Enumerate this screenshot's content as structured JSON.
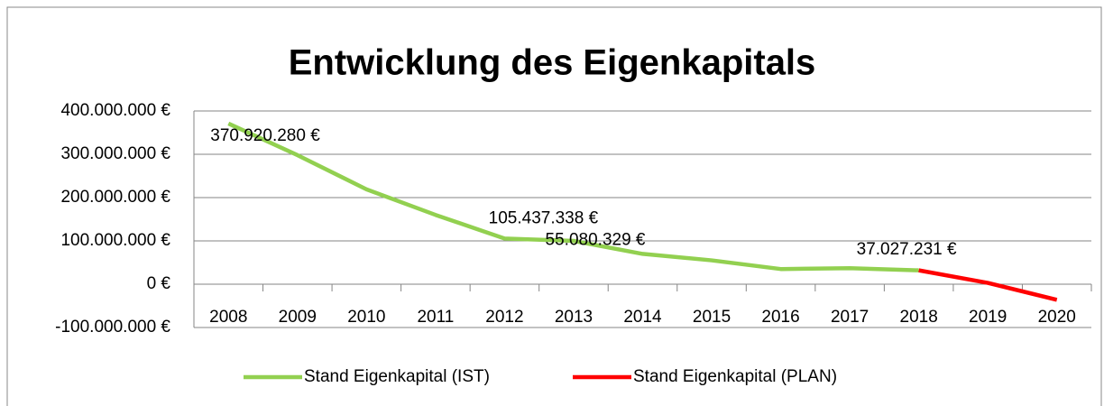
{
  "chart_data": {
    "type": "line",
    "title": "Entwicklung des Eigenkapitals",
    "categories": [
      "2008",
      "2009",
      "2010",
      "2011",
      "2012",
      "2013",
      "2014",
      "2015",
      "2016",
      "2017",
      "2018",
      "2019",
      "2020"
    ],
    "series": [
      {
        "name": "Stand Eigenkapital (IST)",
        "color": "#92d050",
        "values": [
          370920280,
          298000000,
          219000000,
          160000000,
          105437338,
          100000000,
          70000000,
          55080329,
          35000000,
          37027231,
          32000000,
          null,
          null
        ],
        "value_labels": [
          "370.920.280 €",
          null,
          null,
          null,
          "105.437.338 €",
          null,
          null,
          "55.080.329 €",
          null,
          "37.027.231 €",
          null,
          null,
          null
        ]
      },
      {
        "name": "Stand Eigenkapital (PLAN)",
        "color": "#ff0000",
        "values": [
          null,
          null,
          null,
          null,
          null,
          null,
          null,
          null,
          null,
          null,
          32000000,
          3000000,
          -36000000
        ]
      }
    ],
    "ylim": [
      -100000000,
      400000000
    ],
    "yticks": [
      {
        "value": -100000000,
        "label": "-100.000.000 €"
      },
      {
        "value": 0,
        "label": "0 €"
      },
      {
        "value": 100000000,
        "label": "100.000.000 €"
      },
      {
        "value": 200000000,
        "label": "200.000.000 €"
      },
      {
        "value": 300000000,
        "label": "300.000.000 €"
      },
      {
        "value": 400000000,
        "label": "400.000.000 €"
      }
    ],
    "grid": true,
    "legend": "bottom"
  }
}
